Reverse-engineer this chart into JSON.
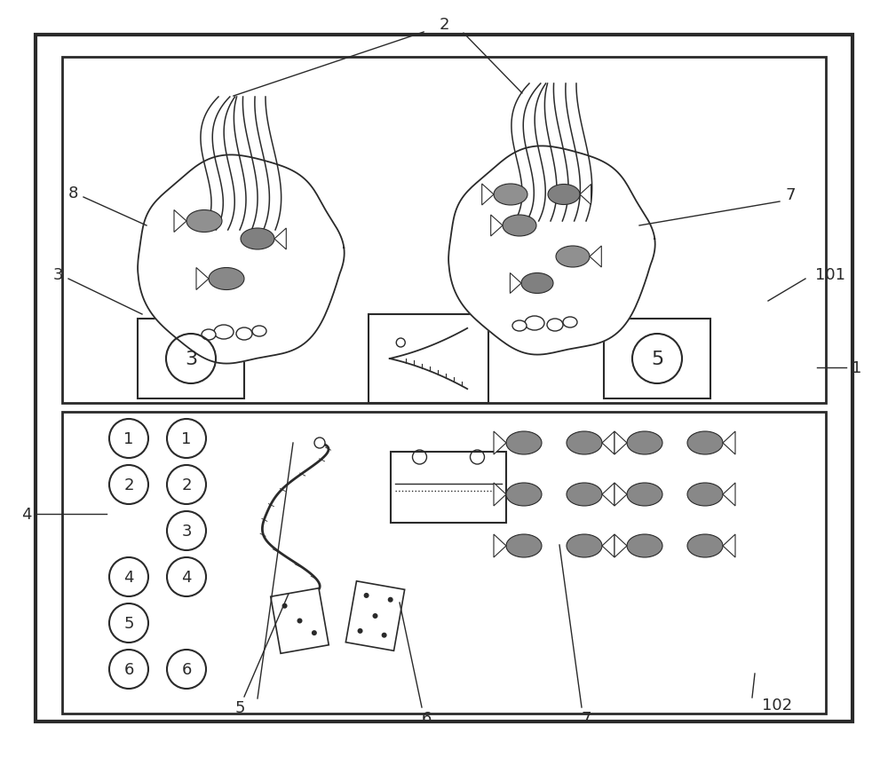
{
  "bg_color": "#ffffff",
  "line_color": "#2a2a2a",
  "gray_fill": "#888888",
  "fig_w": 10.0,
  "fig_h": 8.54
}
